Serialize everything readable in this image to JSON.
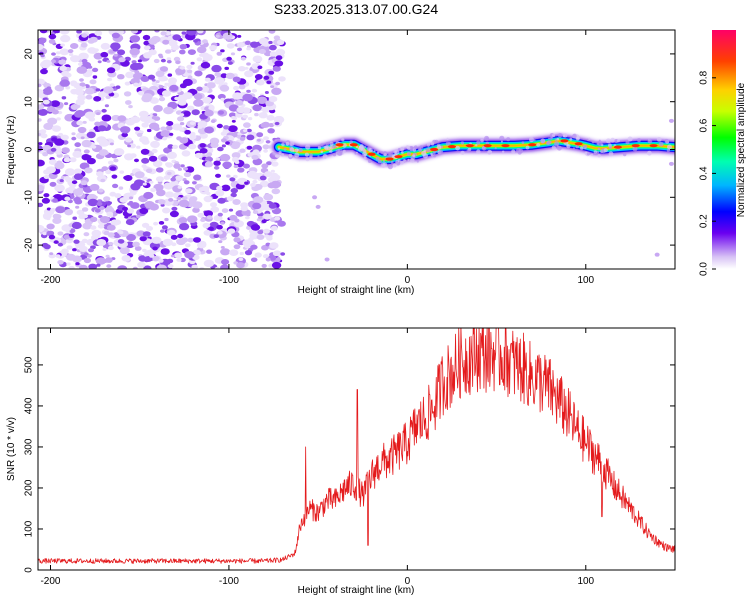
{
  "figure_title": "S233.2025.313.07.00.G24",
  "chart_data": [
    {
      "type": "heatmap",
      "title": "S233.2025.313.07.00.G24",
      "xlabel": "Height of straight line (km)",
      "ylabel": "Frequency (Hz)",
      "xlim": [
        -207,
        150
      ],
      "ylim": [
        -25,
        25
      ],
      "xticks": [
        -200,
        -100,
        0,
        100
      ],
      "xtick_labels": [
        "-200",
        "-100",
        "0",
        "100"
      ],
      "yticks": [
        -20,
        -10,
        0,
        10,
        20
      ],
      "ytick_labels": [
        "-20",
        "-10",
        "0",
        "10",
        "20"
      ],
      "noise_region_km": [
        -207,
        -72
      ],
      "signal_region_km": [
        -72,
        150
      ],
      "doppler_trace": {
        "height_km": [
          -72,
          -65,
          -60,
          -50,
          -45,
          -40,
          -35,
          -30,
          -25,
          -20,
          -15,
          -10,
          -5,
          0,
          5,
          10,
          15,
          20,
          30,
          40,
          50,
          60,
          70,
          80,
          85,
          90,
          95,
          100,
          105,
          110,
          120,
          130,
          140,
          150
        ],
        "frequency_hz": [
          0.5,
          0,
          -0.5,
          -0.5,
          0,
          0.5,
          1,
          1,
          0,
          -1,
          -2,
          -2,
          -1.5,
          -1,
          -1,
          -0.5,
          0,
          0.5,
          0.8,
          0.8,
          0.8,
          0.8,
          1,
          1.5,
          1.8,
          1.5,
          1.2,
          0.8,
          0.3,
          0.2,
          0.5,
          0.8,
          0.8,
          0.5
        ]
      },
      "colorbar": {
        "label": "Normalized spectral amplitude",
        "range": [
          0,
          1
        ],
        "ticks": [
          0.0,
          0.2,
          0.4,
          0.6,
          0.8
        ],
        "tick_labels": [
          "0.0",
          "0.2",
          "0.4",
          "0.6",
          "0.8"
        ]
      }
    },
    {
      "type": "line",
      "xlabel": "Height of straight line (km)",
      "ylabel": "SNR (10 * v/v)",
      "xlim": [
        -207,
        150
      ],
      "ylim": [
        0,
        590
      ],
      "xticks": [
        -200,
        -100,
        0,
        100
      ],
      "xtick_labels": [
        "-200",
        "-100",
        "0",
        "100"
      ],
      "yticks": [
        0,
        100,
        200,
        300,
        400,
        500
      ],
      "ytick_labels": [
        "0",
        "100",
        "200",
        "300",
        "400",
        "500"
      ],
      "color": "#e41a1c",
      "series": [
        {
          "name": "SNR",
          "x": [
            -207,
            -180,
            -150,
            -120,
            -100,
            -80,
            -70,
            -63,
            -60,
            -55,
            -50,
            -45,
            -40,
            -35,
            -30,
            -25,
            -20,
            -15,
            -10,
            -5,
            0,
            5,
            10,
            15,
            20,
            25,
            30,
            35,
            40,
            45,
            50,
            55,
            60,
            65,
            70,
            75,
            80,
            85,
            90,
            95,
            100,
            105,
            110,
            115,
            120,
            125,
            130,
            135,
            140,
            145,
            150
          ],
          "y": [
            22,
            22,
            22,
            22,
            22,
            22,
            25,
            40,
            110,
            150,
            140,
            170,
            170,
            200,
            210,
            180,
            230,
            260,
            270,
            290,
            310,
            350,
            370,
            400,
            460,
            480,
            510,
            520,
            530,
            525,
            530,
            520,
            500,
            490,
            470,
            460,
            440,
            410,
            380,
            340,
            310,
            280,
            250,
            210,
            180,
            150,
            120,
            90,
            70,
            55,
            50
          ]
        }
      ],
      "spikes": [
        {
          "x": -57,
          "y": 300
        },
        {
          "x": -28,
          "y": 440
        },
        {
          "x": -22,
          "y": 60
        },
        {
          "x": 109,
          "y": 130
        }
      ]
    }
  ]
}
